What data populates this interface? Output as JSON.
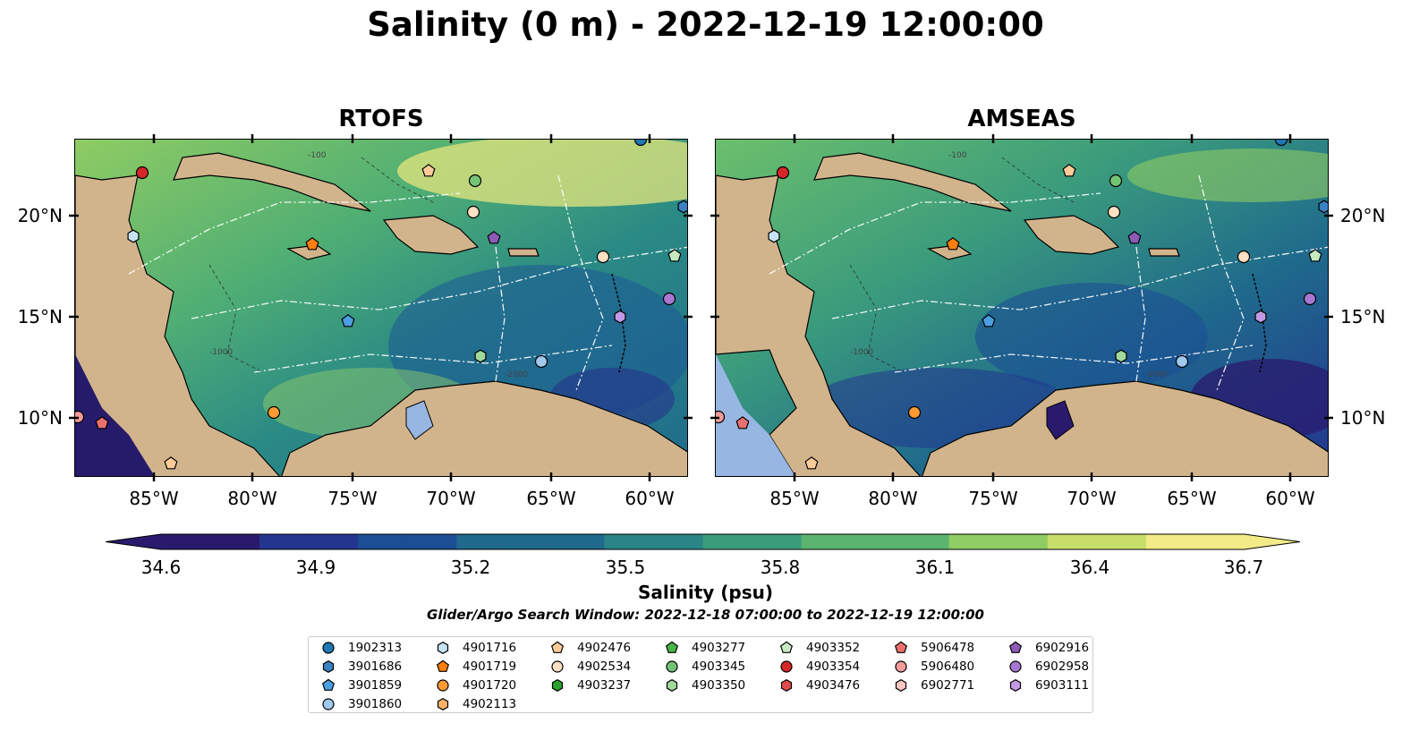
{
  "title": "Salinity (0 m) - 2022-12-19 12:00:00",
  "panels": [
    {
      "title": "RTOFS"
    },
    {
      "title": "AMSEAS"
    }
  ],
  "lon_ticks": [
    "85°W",
    "80°W",
    "75°W",
    "70°W",
    "65°W",
    "60°W"
  ],
  "lat_ticks": [
    "20°N",
    "15°N",
    "10°N"
  ],
  "colorbar": {
    "label": "Salinity (psu)",
    "ticks": [
      "34.6",
      "34.9",
      "35.2",
      "35.5",
      "35.8",
      "36.1",
      "36.4",
      "36.7"
    ],
    "range": [
      34.6,
      36.7
    ],
    "colors": [
      "#2a1a6e",
      "#23358f",
      "#1b4f94",
      "#1f6a8c",
      "#2b8485",
      "#3b9c7c",
      "#5cb56f",
      "#8fcc63",
      "#c7df6a",
      "#f3eb87"
    ]
  },
  "search_window": "Glider/Argo Search Window: 2022-12-18 07:00:00 to 2022-12-19 12:00:00",
  "contour_labels": [
    "-100",
    "-1000",
    "-2000"
  ],
  "colors": {
    "land": "#d2b48c",
    "lake": "#97b6e1"
  },
  "legend": [
    {
      "id": "1902313",
      "marker": "circle",
      "color": "#1f77b4"
    },
    {
      "id": "3901686",
      "marker": "hexagon",
      "color": "#3a82c4"
    },
    {
      "id": "3901859",
      "marker": "pentagon",
      "color": "#4b9ee0"
    },
    {
      "id": "3901860",
      "marker": "circle",
      "color": "#9fc8ec"
    },
    {
      "id": "4901716",
      "marker": "hexagon",
      "color": "#c6e4f5"
    },
    {
      "id": "4901719",
      "marker": "pentagon",
      "color": "#ff7f0e"
    },
    {
      "id": "4901720",
      "marker": "circle",
      "color": "#ff9a35"
    },
    {
      "id": "4902113",
      "marker": "hexagon",
      "color": "#ffb266"
    },
    {
      "id": "4902476",
      "marker": "pentagon",
      "color": "#ffcc99"
    },
    {
      "id": "4902534",
      "marker": "circle",
      "color": "#ffe0c2"
    },
    {
      "id": "4903237",
      "marker": "hexagon",
      "color": "#2ca02c"
    },
    {
      "id": "4903277",
      "marker": "pentagon",
      "color": "#47b447"
    },
    {
      "id": "4903345",
      "marker": "circle",
      "color": "#74c476"
    },
    {
      "id": "4903350",
      "marker": "hexagon",
      "color": "#a1d99b"
    },
    {
      "id": "4903352",
      "marker": "pentagon",
      "color": "#c7e9c0"
    },
    {
      "id": "4903354",
      "marker": "circle",
      "color": "#d62728"
    },
    {
      "id": "4903476",
      "marker": "hexagon",
      "color": "#e04a4a"
    },
    {
      "id": "5906478",
      "marker": "pentagon",
      "color": "#ea6f6f"
    },
    {
      "id": "5906480",
      "marker": "circle",
      "color": "#f49a9a"
    },
    {
      "id": "6902771",
      "marker": "hexagon",
      "color": "#fbc6c6"
    },
    {
      "id": "6902916",
      "marker": "pentagon",
      "color": "#8e5ab8"
    },
    {
      "id": "6902958",
      "marker": "circle",
      "color": "#a877d1"
    },
    {
      "id": "6903111",
      "marker": "hexagon",
      "color": "#c29ae4"
    }
  ]
}
